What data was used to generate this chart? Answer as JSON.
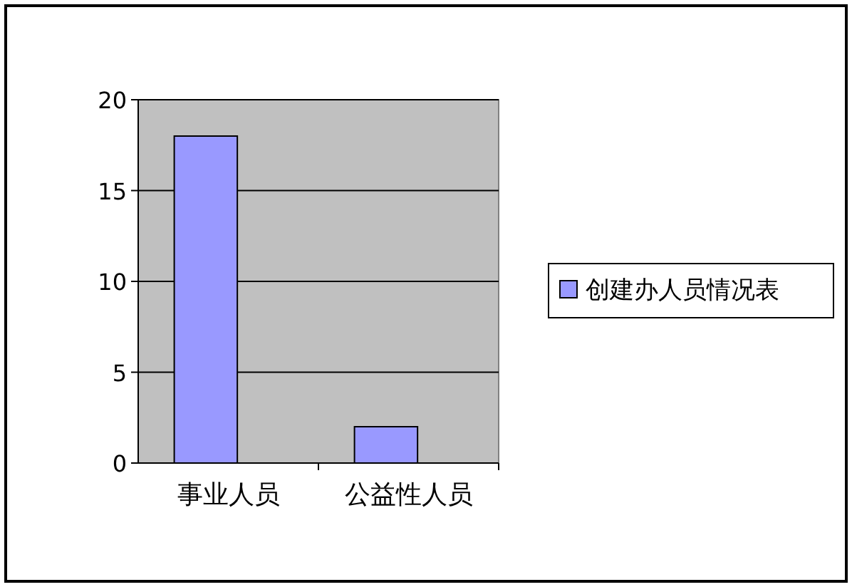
{
  "chart_data": {
    "type": "bar",
    "categories": [
      "事业人员",
      "公益性人员"
    ],
    "series": [
      {
        "name": "创建办人员情况表",
        "color": "#9999ff",
        "values": [
          18,
          2
        ]
      }
    ],
    "ylim": [
      0,
      20
    ],
    "yticks": [
      0,
      5,
      10,
      15,
      20
    ],
    "grid": "y",
    "legend": "right"
  }
}
